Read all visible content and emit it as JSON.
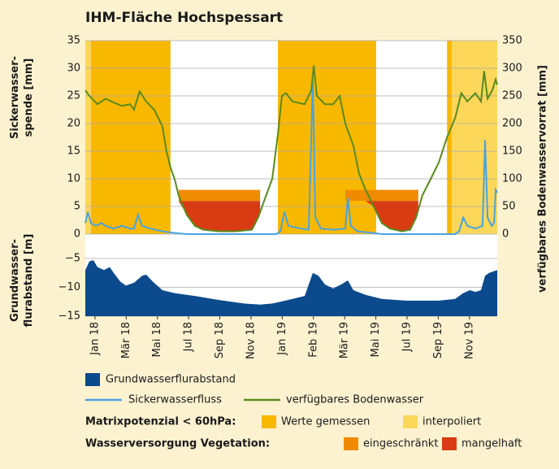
{
  "chart_data": [
    {
      "type": "line",
      "title": "IHM-Fläche Hochspessart",
      "ylabel": [
        "Sickerwasser-",
        "spende [mm]"
      ],
      "y2label": "verfügbares Bodenwasservorrat [mm]",
      "ylim": [
        0,
        35
      ],
      "yticks": [
        0,
        5,
        10,
        15,
        20,
        25,
        30,
        35
      ],
      "y2lim": [
        0,
        350
      ],
      "y2ticks": [
        0,
        50,
        100,
        150,
        200,
        250,
        300,
        350
      ],
      "grid": true,
      "series": [
        {
          "name": "Sickerwasserfluss",
          "color": "#4aa3df",
          "x": [
            -0.31,
            -0.23,
            -0.13,
            0.03,
            0.21,
            0.34,
            0.6,
            0.86,
            1.12,
            1.25,
            1.38,
            1.51,
            1.77,
            2.16,
            2.55,
            2.94,
            5.81,
            5.94,
            6.07,
            6.2,
            6.59,
            6.85,
            6.98,
            7.06,
            7.24,
            7.63,
            8.02,
            8.1,
            8.2,
            8.41,
            8.93,
            9.19,
            11.54,
            11.67,
            11.8,
            11.93,
            12.19,
            12.42,
            12.5,
            12.58,
            12.71,
            12.79,
            12.84,
            12.89
          ],
          "values": [
            2,
            4,
            2,
            1.5,
            2,
            1.5,
            1,
            1.5,
            1,
            1,
            3.5,
            1.5,
            1,
            0.5,
            0.2,
            0,
            0,
            0.5,
            4,
            1.5,
            1,
            0.8,
            28,
            3,
            1,
            0.8,
            1,
            6.5,
            1.5,
            0.5,
            0.2,
            0,
            0,
            0.5,
            3,
            1.5,
            1,
            1.5,
            17,
            3,
            1.5,
            2,
            8,
            7.5
          ]
        },
        {
          "name": "verfügbares Bodenwasser",
          "color": "#5a8a1f",
          "axis": "y2",
          "x": [
            -0.31,
            -0.18,
            0.08,
            0.34,
            0.6,
            0.86,
            1.12,
            1.25,
            1.43,
            1.64,
            1.9,
            2.16,
            2.29,
            2.42,
            2.55,
            2.68,
            2.94,
            3.2,
            3.46,
            3.98,
            4.51,
            5.03,
            5.23,
            5.42,
            5.68,
            5.86,
            5.99,
            6.12,
            6.33,
            6.72,
            6.93,
            7.01,
            7.11,
            7.37,
            7.63,
            7.84,
            8.02,
            8.28,
            8.46,
            8.67,
            8.93,
            9.19,
            9.45,
            9.84,
            10.1,
            10.29,
            10.49,
            10.76,
            11.02,
            11.28,
            11.54,
            11.74,
            11.93,
            12.19,
            12.37,
            12.47,
            12.58,
            12.73,
            12.84,
            12.89
          ],
          "values": [
            260,
            250,
            235,
            245,
            238,
            232,
            235,
            225,
            258,
            240,
            225,
            195,
            150,
            120,
            100,
            70,
            35,
            15,
            8,
            5,
            5,
            8,
            30,
            60,
            100,
            180,
            250,
            255,
            240,
            235,
            260,
            305,
            250,
            235,
            235,
            250,
            200,
            160,
            110,
            80,
            50,
            20,
            10,
            5,
            8,
            30,
            70,
            100,
            130,
            175,
            210,
            255,
            240,
            255,
            240,
            295,
            245,
            260,
            280,
            270
          ]
        }
      ],
      "bands": {
        "label": "Matrixpotenzial < 60hPa:",
        "items": [
          {
            "name": "Werte gemessen",
            "color": "#f9b800",
            "ranges": [
              [
                -0.13,
                2.42
              ],
              [
                5.86,
                9.01
              ],
              [
                11.28,
                11.43
              ]
            ]
          },
          {
            "name": "interpoliert",
            "color": "#fdd75a",
            "ranges": [
              [
                -0.31,
                -0.13
              ],
              [
                11.43,
                12.89
              ]
            ]
          }
        ]
      },
      "supply": {
        "label": "Wasserversorgung Vegetation:",
        "ranges": [
          [
            2.68,
            5.29
          ],
          [
            8.02,
            10.36
          ]
        ],
        "items": [
          {
            "name": "eingeschränkt",
            "color": "#ef8b00",
            "y2range": [
              60,
              80
            ]
          },
          {
            "name": "mangelhaft",
            "color": "#d93c12",
            "y2range": [
              0,
              60
            ]
          }
        ]
      }
    },
    {
      "type": "area",
      "ylabel": [
        "Grundwasser-",
        "flurabstand [m]"
      ],
      "ylim": [
        -15,
        -3
      ],
      "yticks": [
        {
          "value": -5,
          "label": "−5"
        },
        {
          "value": -10,
          "label": "−10"
        },
        {
          "value": -15,
          "label": "−15"
        }
      ],
      "grid": true,
      "xlim": [
        -0.31,
        12.89
      ],
      "xticks": [
        {
          "value": 0,
          "label": "Jan 18"
        },
        {
          "value": 1,
          "label": "Mär 18"
        },
        {
          "value": 2,
          "label": "Mai 18"
        },
        {
          "value": 3,
          "label": "Jul 18"
        },
        {
          "value": 4,
          "label": "Sep 18"
        },
        {
          "value": 5,
          "label": "Nov 18"
        },
        {
          "value": 6,
          "label": "Jan 19"
        },
        {
          "value": 7,
          "label": "Feb 19"
        },
        {
          "value": 8,
          "label": "Mär 19"
        },
        {
          "value": 9,
          "label": "Mai 19"
        },
        {
          "value": 10,
          "label": "Jul 19"
        },
        {
          "value": 11,
          "label": "Sep 19"
        },
        {
          "value": 12,
          "label": "Nov 19"
        }
      ],
      "series": [
        {
          "name": "Grundwasserflurabstand",
          "color": "#0b4a8c",
          "x": [
            -0.31,
            -0.18,
            -0.05,
            0.08,
            0.29,
            0.47,
            0.6,
            0.81,
            0.99,
            1.25,
            1.51,
            1.64,
            1.85,
            2.16,
            2.55,
            3.2,
            3.98,
            4.77,
            5.29,
            5.68,
            5.94,
            6.33,
            6.72,
            6.98,
            7.16,
            7.37,
            7.63,
            7.89,
            8.1,
            8.28,
            8.67,
            9.19,
            9.97,
            11.02,
            11.54,
            11.8,
            12.01,
            12.19,
            12.37,
            12.5,
            12.63,
            12.89
          ],
          "values": [
            -7,
            -5.5,
            -5.3,
            -6.5,
            -7,
            -6.5,
            -7.5,
            -9,
            -9.7,
            -9.2,
            -8,
            -7.8,
            -9,
            -10.5,
            -11,
            -11.5,
            -12.2,
            -12.8,
            -13,
            -12.8,
            -12.5,
            -12,
            -11.5,
            -7.5,
            -8,
            -9.5,
            -10.2,
            -9.5,
            -8.8,
            -10.5,
            -11.3,
            -12,
            -12.3,
            -12.3,
            -12,
            -11,
            -10.5,
            -10.8,
            -10.5,
            -8,
            -7.5,
            -7
          ]
        }
      ]
    }
  ]
}
